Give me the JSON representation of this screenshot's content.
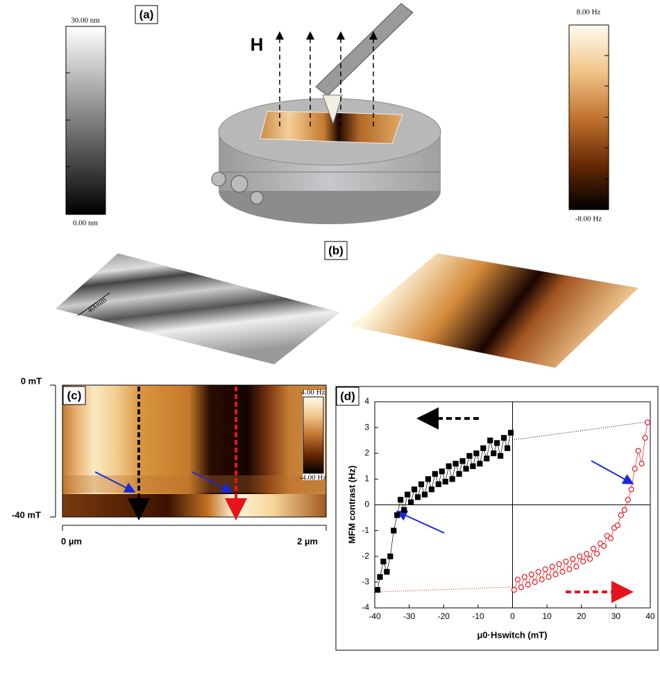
{
  "panels": {
    "a": {
      "label": "(a)",
      "height_bar": {
        "max": "30.00 nm",
        "min": "0.00 nm"
      },
      "field": "H",
      "freq_bar": {
        "max": "8.00 Hz",
        "min": "-8.00 Hz"
      }
    },
    "b": {
      "label": "(b)",
      "scale": "400nm"
    },
    "c": {
      "label": "(c)",
      "field_top": "0 mT",
      "field_bottom": "-40 mT",
      "x_start": "0 µm",
      "x_end": "2 µm",
      "bar_max": "4.00 Hz",
      "bar_min": "-4.00 Hz"
    }
  },
  "chart_data": {
    "type": "scatter",
    "label": "(d)",
    "xlabel": "μ0·Hswitch (mT)",
    "ylabel": "MFM contrast (Hz)",
    "xlim": [
      -40,
      40
    ],
    "ylim": [
      -4,
      4
    ],
    "xticks": [
      -40,
      -30,
      -20,
      -10,
      0,
      10,
      20,
      30,
      40
    ],
    "yticks": [
      -4,
      -3,
      -2,
      -1,
      0,
      1,
      2,
      3,
      4
    ],
    "series": [
      {
        "color": "#000000",
        "marker": "square",
        "filled": true,
        "x": [
          -0.5,
          -1.5,
          -2.5,
          -3.5,
          -4.5,
          -5.5,
          -6.5,
          -7.5,
          -8.5,
          -9.5,
          -10.5,
          -11.5,
          -12.5,
          -13.5,
          -14.5,
          -15.5,
          -16.5,
          -17.5,
          -18.5,
          -19.5,
          -20.5,
          -21.5,
          -22.5,
          -23.5,
          -24.5,
          -25.5,
          -26.5,
          -27.5,
          -28.5,
          -29.5,
          -30.5,
          -31.5,
          -32.5,
          -33.5,
          -34.5,
          -35.5,
          -36.5,
          -37.5,
          -38.5,
          -39.2
        ],
        "values": [
          2.8,
          2.2,
          2.6,
          1.9,
          2.4,
          2.0,
          2.5,
          1.8,
          2.2,
          1.6,
          2.0,
          1.5,
          1.9,
          1.4,
          1.7,
          1.2,
          1.6,
          1.0,
          1.5,
          0.9,
          1.3,
          0.8,
          1.2,
          0.6,
          1.0,
          0.4,
          0.8,
          0.3,
          0.6,
          0.1,
          0.4,
          -0.2,
          0.2,
          -0.4,
          -1.0,
          -2.0,
          -2.6,
          -2.2,
          -2.8,
          -3.3
        ]
      },
      {
        "color": "#e8141b",
        "marker": "circle",
        "filled": false,
        "x": [
          0.5,
          1.5,
          2.5,
          3.5,
          4.5,
          5.5,
          6.5,
          7.5,
          8.5,
          9.5,
          10.5,
          11.5,
          12.5,
          13.5,
          14.5,
          15.5,
          16.5,
          17.5,
          18.5,
          19.5,
          20.5,
          21.5,
          22.5,
          23.5,
          24.5,
          25.5,
          26.5,
          27.5,
          28.5,
          29.5,
          30.5,
          31.5,
          32.5,
          33.5,
          34.5,
          35.5,
          36.5,
          37.5,
          38.5,
          39.2
        ],
        "values": [
          -3.3,
          -2.9,
          -3.2,
          -2.8,
          -3.1,
          -2.7,
          -3.0,
          -2.6,
          -2.9,
          -2.5,
          -2.8,
          -2.4,
          -2.7,
          -2.3,
          -2.6,
          -2.2,
          -2.5,
          -2.1,
          -2.4,
          -2.0,
          -2.2,
          -1.9,
          -2.1,
          -1.7,
          -1.9,
          -1.5,
          -1.6,
          -1.2,
          -1.3,
          -0.9,
          -0.8,
          -0.4,
          -0.2,
          0.2,
          0.6,
          1.4,
          2.1,
          1.6,
          2.6,
          3.2
        ]
      }
    ]
  }
}
